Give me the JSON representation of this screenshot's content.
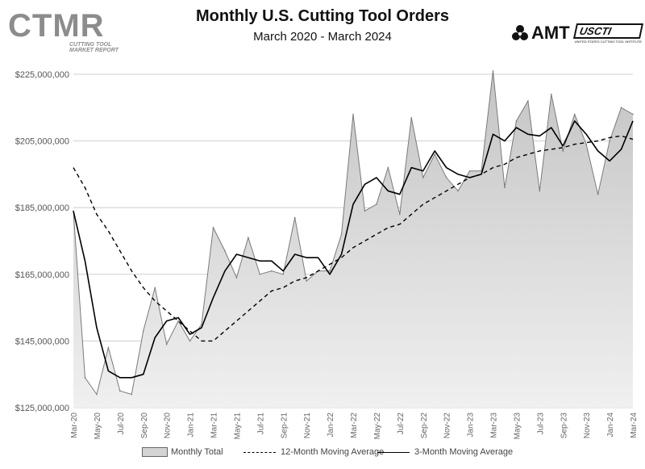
{
  "header": {
    "title": "Monthly U.S. Cutting Tool Orders",
    "subtitle": "March 2020 - March 2024",
    "logo_left_main": "CTMR",
    "logo_left_sub1": "CUTTING TOOL",
    "logo_left_sub2": "MARKET REPORT",
    "logo_right_amt": "AMT",
    "logo_right_ussi": "USCTI",
    "logo_right_ussi_sub": "UNITED STATES CUTTING TOOL INSTITUTE"
  },
  "colors": {
    "area_fill_top": "#c4c4c4",
    "area_fill_bottom": "#f0f0f0",
    "area_stroke": "#7a7a7a",
    "line_color": "#000000",
    "grid_color": "#cfcfcf",
    "logo_gray": "#8c8c8c"
  },
  "chart_data": {
    "type": "area",
    "title": "Monthly U.S. Cutting Tool Orders",
    "subtitle": "March 2020 - March 2024",
    "ylim": [
      125000000,
      230000000
    ],
    "yticks": [
      125000000,
      145000000,
      165000000,
      185000000,
      205000000,
      225000000
    ],
    "ytick_labels": [
      "$125,000,000",
      "$145,000,000",
      "$165,000,000",
      "$185,000,000",
      "$205,000,000",
      "$225,000,000"
    ],
    "grid": "horizontal",
    "legend_position": "bottom",
    "x": [
      "Mar-20",
      "Apr-20",
      "May-20",
      "Jun-20",
      "Jul-20",
      "Aug-20",
      "Sep-20",
      "Oct-20",
      "Nov-20",
      "Dec-20",
      "Jan-21",
      "Feb-21",
      "Mar-21",
      "Apr-21",
      "May-21",
      "Jun-21",
      "Jul-21",
      "Aug-21",
      "Sep-21",
      "Oct-21",
      "Nov-21",
      "Dec-21",
      "Jan-22",
      "Feb-22",
      "Mar-22",
      "Apr-22",
      "May-22",
      "Jun-22",
      "Jul-22",
      "Aug-22",
      "Sep-22",
      "Oct-22",
      "Nov-22",
      "Dec-22",
      "Jan-23",
      "Feb-23",
      "Mar-23",
      "Apr-23",
      "May-23",
      "Jun-23",
      "Jul-23",
      "Aug-23",
      "Sep-23",
      "Oct-23",
      "Nov-23",
      "Dec-23",
      "Jan-24",
      "Feb-24",
      "Mar-24"
    ],
    "x_tick_labels": [
      "Mar-20",
      "May-20",
      "Jul-20",
      "Sep-20",
      "Nov-20",
      "Jan-21",
      "Mar-21",
      "May-21",
      "Jul-21",
      "Sep-21",
      "Nov-21",
      "Jan-22",
      "Mar-22",
      "May-22",
      "Jul-22",
      "Sep-22",
      "Nov-22",
      "Jan-23",
      "Mar-23",
      "May-23",
      "Jul-23",
      "Sep-23",
      "Nov-23",
      "Jan-24",
      "Mar-24"
    ],
    "series": [
      {
        "name": "Monthly Total",
        "style": "area",
        "values": [
          184000000,
          134000000,
          129000000,
          143000000,
          130000000,
          129000000,
          148000000,
          161000000,
          144000000,
          151000000,
          145000000,
          150000000,
          179000000,
          172000000,
          164000000,
          176000000,
          165000000,
          166000000,
          165000000,
          182000000,
          163000000,
          166000000,
          166000000,
          177000000,
          213000000,
          184000000,
          186000000,
          197000000,
          183000000,
          212000000,
          194000000,
          201000000,
          194000000,
          190000000,
          196000000,
          196000000,
          226000000,
          191000000,
          211000000,
          217000000,
          190000000,
          219000000,
          202000000,
          213000000,
          204000000,
          189000000,
          205000000,
          215000000,
          213000000
        ]
      },
      {
        "name": "12-Month Moving Average",
        "style": "dashed",
        "values": [
          197000000,
          191000000,
          183000000,
          178000000,
          172000000,
          166000000,
          161000000,
          157000000,
          154000000,
          151000000,
          148000000,
          145000000,
          145000000,
          148000000,
          151000000,
          154000000,
          157000000,
          160000000,
          161000000,
          163000000,
          164000000,
          166000000,
          168000000,
          170000000,
          173000000,
          175000000,
          177000000,
          179000000,
          180000000,
          183000000,
          186000000,
          188000000,
          190000000,
          192000000,
          194000000,
          195000000,
          197000000,
          198000000,
          200000000,
          201000000,
          202000000,
          202500000,
          203000000,
          204000000,
          204500000,
          205000000,
          206000000,
          206500000,
          205500000
        ]
      },
      {
        "name": "3-Month Moving Average",
        "style": "solid",
        "values": [
          184000000,
          169000000,
          149000000,
          136000000,
          134000000,
          134000000,
          135000000,
          146000000,
          151000000,
          152000000,
          147000000,
          149000000,
          158000000,
          166000000,
          171000000,
          170000000,
          169000000,
          169000000,
          166000000,
          171000000,
          170000000,
          170000000,
          165000000,
          171000000,
          186000000,
          192000000,
          194000000,
          190000000,
          189000000,
          197000000,
          196000000,
          202000000,
          197000000,
          195000000,
          194000000,
          195000000,
          207000000,
          205000000,
          209000000,
          207000000,
          206500000,
          209000000,
          203500000,
          211000000,
          207000000,
          202000000,
          199000000,
          202500000,
          211000000
        ]
      }
    ]
  }
}
